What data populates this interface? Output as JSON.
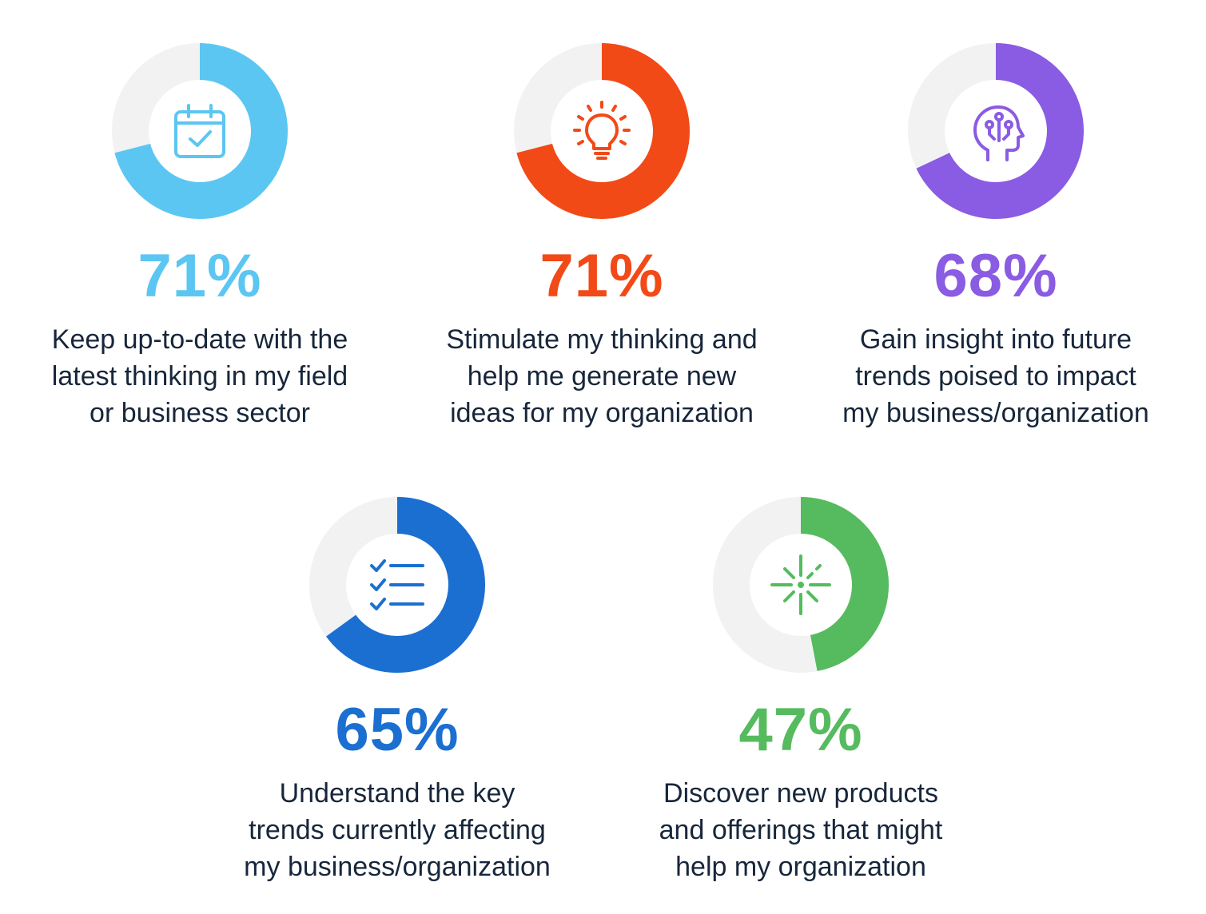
{
  "chart_data": [
    {
      "type": "pie",
      "value": 71,
      "label": "71%",
      "description_lines": [
        "Keep up-to-date with the",
        "latest thinking in my field",
        "or business sector"
      ],
      "color": "#5cc6f2",
      "icon": "calendar-check-icon"
    },
    {
      "type": "pie",
      "value": 71,
      "label": "71%",
      "description_lines": [
        "Stimulate my thinking and",
        "help me generate new",
        "ideas for my organization"
      ],
      "color": "#f24a17",
      "icon": "lightbulb-icon"
    },
    {
      "type": "pie",
      "value": 68,
      "label": "68%",
      "description_lines": [
        "Gain insight into future",
        "trends poised to impact",
        "my business/organization"
      ],
      "color": "#8a5be3",
      "icon": "brain-circuit-icon"
    },
    {
      "type": "pie",
      "value": 65,
      "label": "65%",
      "description_lines": [
        "Understand the key",
        "trends currently affecting",
        "my business/organization"
      ],
      "color": "#1b6fd0",
      "icon": "checklist-icon"
    },
    {
      "type": "pie",
      "value": 47,
      "label": "47%",
      "description_lines": [
        "Discover new products",
        "and offerings that might",
        "help my organization"
      ],
      "color": "#56bb5f",
      "icon": "sparkle-burst-icon"
    }
  ],
  "track_color": "#f2f2f2"
}
